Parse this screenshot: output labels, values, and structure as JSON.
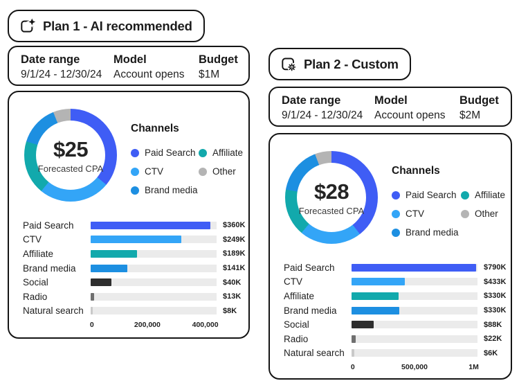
{
  "colors": {
    "paid_search": "#3F5DF5",
    "ctv": "#33A5F7",
    "affiliate": "#12A9AC",
    "brand_media": "#1D8FE1",
    "other": "#B4B4B4",
    "social": "#2E2E2E",
    "radio": "#6F6F6F",
    "natural_search": "#C9C9C9",
    "track": "#EBEBEB",
    "border": "#141414"
  },
  "legend_columns": [
    [
      "Paid Search",
      "CTV",
      "Brand media"
    ],
    [
      "Affiliate",
      "Other"
    ]
  ],
  "plans": [
    {
      "title": "Plan 1 - AI recommended",
      "icon": "ai-sparkle-plan-icon",
      "meta": [
        {
          "label": "Date range",
          "value": "9/1/24 - 12/30/24"
        },
        {
          "label": "Model",
          "value": "Account opens"
        },
        {
          "label": "Budget",
          "value": "$1M"
        }
      ],
      "legend_title": "Channels",
      "donut_center_value": "$25",
      "donut_center_label": "Forecasted CPA"
    },
    {
      "title": "Plan 2 - Custom",
      "icon": "gear-plan-icon",
      "meta": [
        {
          "label": "Date range",
          "value": "9/1/24 - 12/30/24"
        },
        {
          "label": "Model",
          "value": "Account opens"
        },
        {
          "label": "Budget",
          "value": "$2M"
        }
      ],
      "legend_title": "Channels",
      "donut_center_value": "$28",
      "donut_center_label": "Forecasted CPA"
    }
  ],
  "chart_data": [
    {
      "plan": "Plan 1 - AI recommended",
      "type": "donut+bar",
      "donut": {
        "type": "pie",
        "center_value": "$25",
        "center_label": "Forecasted CPA",
        "legend_title": "Channels",
        "legend_entries": [
          "Paid Search",
          "CTV",
          "Brand media",
          "Affiliate",
          "Other"
        ],
        "segments": [
          {
            "label": "Paid Search",
            "pct": 36.0
          },
          {
            "label": "CTV",
            "pct": 24.9
          },
          {
            "label": "Affiliate",
            "pct": 18.9
          },
          {
            "label": "Brand media",
            "pct": 14.1
          },
          {
            "label": "Other",
            "pct": 6.1
          }
        ]
      },
      "bar": {
        "type": "bar",
        "orientation": "horizontal",
        "categories": [
          "Paid Search",
          "CTV",
          "Affiliate",
          "Brand media",
          "Social",
          "Radio",
          "Natural search"
        ],
        "values": [
          360000,
          249000,
          189000,
          141000,
          40000,
          13000,
          8000
        ],
        "value_labels": [
          "$360K",
          "$249K",
          "$189K",
          "$141K",
          "$40K",
          "$13K",
          "$8K"
        ],
        "bar_pct": [
          95,
          72,
          37,
          29,
          16.5,
          3,
          1.5
        ],
        "xlim": [
          0,
          440000
        ],
        "x_ticks": [
          {
            "label": "0",
            "pct": 1
          },
          {
            "label": "200,000",
            "pct": 45
          },
          {
            "label": "400,000",
            "pct": 91
          }
        ]
      }
    },
    {
      "plan": "Plan 2 - Custom",
      "type": "donut+bar",
      "donut": {
        "type": "pie",
        "center_value": "$28",
        "center_label": "Forecasted CPA",
        "legend_title": "Channels",
        "legend_entries": [
          "Paid Search",
          "CTV",
          "Brand media",
          "Affiliate",
          "Other"
        ],
        "segments": [
          {
            "label": "Paid Search",
            "pct": 39.5
          },
          {
            "label": "CTV",
            "pct": 21.7
          },
          {
            "label": "Affiliate",
            "pct": 16.5
          },
          {
            "label": "Brand media",
            "pct": 16.5
          },
          {
            "label": "Other",
            "pct": 5.8
          }
        ]
      },
      "bar": {
        "type": "bar",
        "orientation": "horizontal",
        "categories": [
          "Paid Search",
          "CTV",
          "Affiliate",
          "Brand media",
          "Social",
          "Radio",
          "Natural search"
        ],
        "values": [
          790000,
          433000,
          330000,
          330000,
          88000,
          22000,
          6000
        ],
        "value_labels": [
          "$790K",
          "$433K",
          "$330K",
          "$330K",
          "$88K",
          "$22K",
          "$6K"
        ],
        "bar_pct": [
          99,
          42.5,
          37.5,
          38,
          17.5,
          3.5,
          2
        ],
        "xlim": [
          0,
          1100000
        ],
        "x_ticks": [
          {
            "label": "0",
            "pct": 1
          },
          {
            "label": "500,000",
            "pct": 50
          },
          {
            "label": "1M",
            "pct": 97
          }
        ]
      }
    }
  ]
}
